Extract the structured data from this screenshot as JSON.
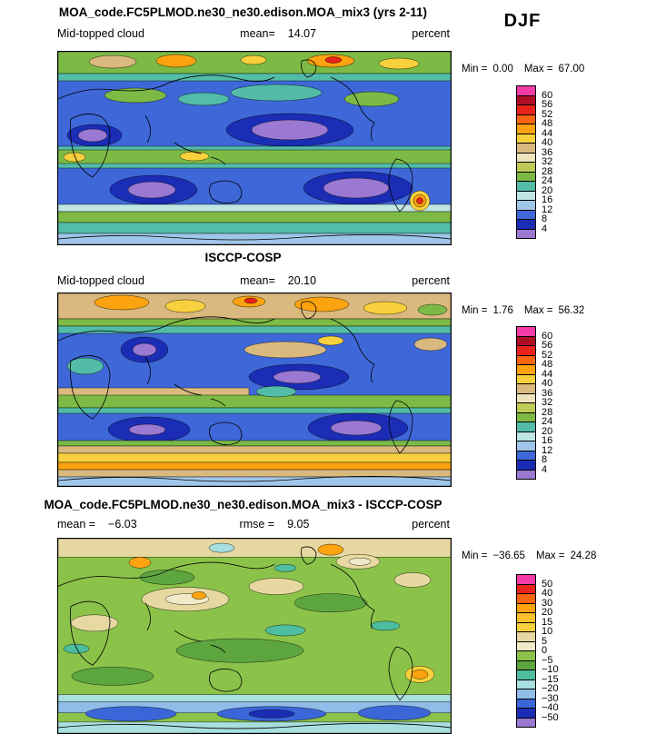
{
  "season_label": "DJF",
  "panels": [
    {
      "title": "MOA_code.FC5PLMOD.ne30_ne30.edison.MOA_mix3 (yrs 2-11)",
      "variable": "Mid-topped cloud",
      "mean_label": "mean=",
      "mean_value": "14.07",
      "units": "percent",
      "min_label": "Min =",
      "min_value": "0.00",
      "max_label": "Max =",
      "max_value": "67.00",
      "colorbar": {
        "labels": [
          "60",
          "56",
          "52",
          "48",
          "44",
          "40",
          "36",
          "32",
          "28",
          "24",
          "20",
          "16",
          "12",
          "8",
          "4"
        ],
        "colors": [
          "#F23BA6",
          "#AE0E24",
          "#E8231C",
          "#F96511",
          "#FCA30F",
          "#F7D13D",
          "#D9B97E",
          "#EEE3BC",
          "#BFCB57",
          "#7CBA45",
          "#52BCA8",
          "#BFE6E2",
          "#9FC6E8",
          "#3E68D8",
          "#1B2DB4",
          "#9B79D2"
        ]
      }
    },
    {
      "title": "ISCCP-COSP",
      "variable": "Mid-topped cloud",
      "mean_label": "mean=",
      "mean_value": "20.10",
      "units": "percent",
      "min_label": "Min =",
      "min_value": "1.76",
      "max_label": "Max =",
      "max_value": "56.32",
      "colorbar": {
        "labels": [
          "60",
          "56",
          "52",
          "48",
          "44",
          "40",
          "36",
          "32",
          "28",
          "24",
          "20",
          "16",
          "12",
          "8",
          "4"
        ],
        "colors": [
          "#F23BA6",
          "#AE0E24",
          "#E8231C",
          "#F96511",
          "#FCA30F",
          "#F7D13D",
          "#D9B97E",
          "#EEE3BC",
          "#BFCB57",
          "#7CBA45",
          "#52BCA8",
          "#BFE6E2",
          "#9FC6E8",
          "#3E68D8",
          "#1B2DB4",
          "#9B79D2"
        ]
      }
    },
    {
      "title": "MOA_code.FC5PLMOD.ne30_ne30.edison.MOA_mix3 - ISCCP-COSP",
      "mean_label": "mean =",
      "mean_value": "−6.03",
      "rmse_label": "rmse =",
      "rmse_value": "9.05",
      "units": "percent",
      "min_label": "Min =",
      "min_value": "−36.65",
      "max_label": "Max =",
      "max_value": "24.28",
      "colorbar": {
        "labels": [
          "50",
          "40",
          "30",
          "20",
          "15",
          "10",
          "5",
          "0",
          "−5",
          "−10",
          "−15",
          "−20",
          "−30",
          "−40",
          "−50"
        ],
        "colors": [
          "#F23BA6",
          "#E8231C",
          "#F96511",
          "#FCA30F",
          "#FBC02D",
          "#F7D13D",
          "#E6D8A0",
          "#F0EAC8",
          "#8BC34A",
          "#5DA63F",
          "#4DBFA0",
          "#A8DFE0",
          "#8FBCE8",
          "#3A66D8",
          "#1B2DB4",
          "#9B79D2"
        ]
      }
    }
  ],
  "chart_data": [
    {
      "type": "heatmap",
      "subtype": "filled-contour-world-map",
      "panel": "model",
      "title": "MOA_code.FC5PLMOD.ne30_ne30.edison.MOA_mix3 (yrs 2-11)",
      "variable": "Mid-topped cloud",
      "season": "DJF",
      "units": "percent",
      "stats": {
        "mean": 14.07,
        "min": 0.0,
        "max": 67.0
      },
      "contour_levels": [
        4,
        8,
        12,
        16,
        20,
        24,
        28,
        32,
        36,
        40,
        44,
        48,
        52,
        56,
        60
      ],
      "palette_top_to_bottom": [
        "#F23BA6",
        "#AE0E24",
        "#E8231C",
        "#F96511",
        "#FCA30F",
        "#F7D13D",
        "#D9B97E",
        "#EEE3BC",
        "#BFCB57",
        "#7CBA45",
        "#52BCA8",
        "#BFE6E2",
        "#9FC6E8",
        "#3E68D8",
        "#1B2DB4",
        "#9B79D2"
      ]
    },
    {
      "type": "heatmap",
      "subtype": "filled-contour-world-map",
      "panel": "observation",
      "title": "ISCCP-COSP",
      "variable": "Mid-topped cloud",
      "season": "DJF",
      "units": "percent",
      "stats": {
        "mean": 20.1,
        "min": 1.76,
        "max": 56.32
      },
      "contour_levels": [
        4,
        8,
        12,
        16,
        20,
        24,
        28,
        32,
        36,
        40,
        44,
        48,
        52,
        56,
        60
      ],
      "palette_top_to_bottom": [
        "#F23BA6",
        "#AE0E24",
        "#E8231C",
        "#F96511",
        "#FCA30F",
        "#F7D13D",
        "#D9B97E",
        "#EEE3BC",
        "#BFCB57",
        "#7CBA45",
        "#52BCA8",
        "#BFE6E2",
        "#9FC6E8",
        "#3E68D8",
        "#1B2DB4",
        "#9B79D2"
      ]
    },
    {
      "type": "heatmap",
      "subtype": "filled-contour-world-map",
      "panel": "difference",
      "title": "MOA_code.FC5PLMOD.ne30_ne30.edison.MOA_mix3 - ISCCP-COSP",
      "variable": "Mid-topped cloud",
      "season": "DJF",
      "units": "percent",
      "stats": {
        "mean": -6.03,
        "rmse": 9.05,
        "min": -36.65,
        "max": 24.28
      },
      "contour_levels": [
        -50,
        -40,
        -30,
        -20,
        -15,
        -10,
        -5,
        0,
        5,
        10,
        15,
        20,
        30,
        40,
        50
      ],
      "palette_top_to_bottom": [
        "#F23BA6",
        "#E8231C",
        "#F96511",
        "#FCA30F",
        "#FBC02D",
        "#F7D13D",
        "#E6D8A0",
        "#F0EAC8",
        "#8BC34A",
        "#5DA63F",
        "#4DBFA0",
        "#A8DFE0",
        "#8FBCE8",
        "#3A66D8",
        "#1B2DB4",
        "#9B79D2"
      ]
    }
  ]
}
